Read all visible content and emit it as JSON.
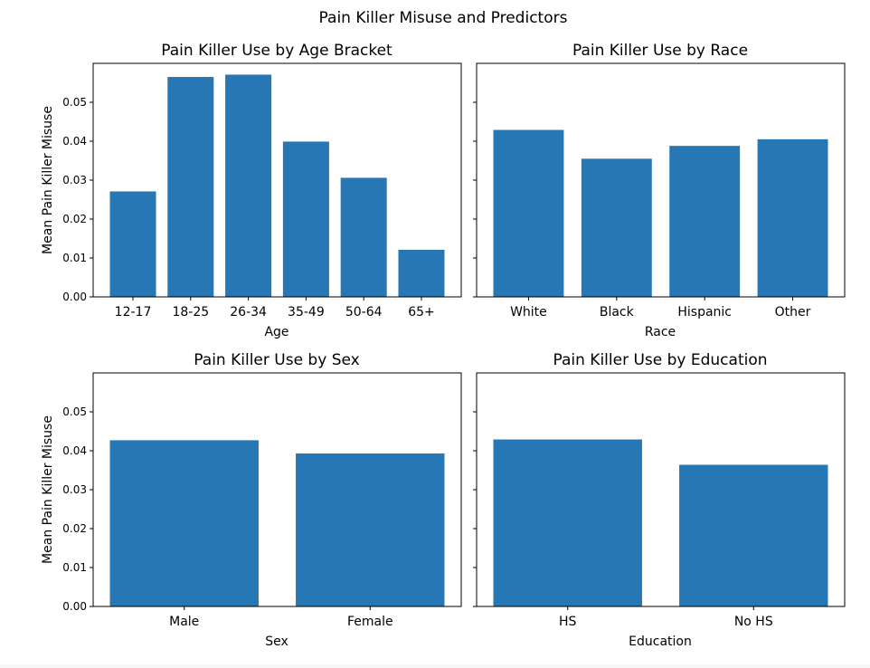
{
  "suptitle": "Pain Killer Misuse and Predictors",
  "bar_color": "#2677b4",
  "chart_data": [
    {
      "type": "bar",
      "title": "Pain Killer Use by Age Bracket",
      "xlabel": "Age",
      "ylabel": "Mean Pain Killer Misuse",
      "categories": [
        "12-17",
        "18-25",
        "26-34",
        "35-49",
        "50-64",
        "65+"
      ],
      "values": [
        0.0271,
        0.0565,
        0.0571,
        0.0399,
        0.0306,
        0.0121
      ],
      "ylim": [
        0,
        0.06
      ],
      "yticks": [
        "0.00",
        "0.01",
        "0.02",
        "0.03",
        "0.04",
        "0.05"
      ],
      "grid": false
    },
    {
      "type": "bar",
      "title": "Pain Killer Use by Race",
      "xlabel": "Race",
      "ylabel": "",
      "categories": [
        "White",
        "Black",
        "Hispanic",
        "Other"
      ],
      "values": [
        0.0429,
        0.0355,
        0.0388,
        0.0405
      ],
      "ylim": [
        0,
        0.06
      ],
      "yticks": [],
      "grid": false
    },
    {
      "type": "bar",
      "title": "Pain Killer Use by Sex",
      "xlabel": "Sex",
      "ylabel": "Mean Pain Killer Misuse",
      "categories": [
        "Male",
        "Female"
      ],
      "values": [
        0.0427,
        0.0393
      ],
      "ylim": [
        0,
        0.06
      ],
      "yticks": [
        "0.00",
        "0.01",
        "0.02",
        "0.03",
        "0.04",
        "0.05"
      ],
      "grid": false
    },
    {
      "type": "bar",
      "title": "Pain Killer Use by Education",
      "xlabel": "Education",
      "ylabel": "",
      "categories": [
        "HS",
        "No HS"
      ],
      "values": [
        0.0429,
        0.0364
      ],
      "ylim": [
        0,
        0.06
      ],
      "yticks": [],
      "grid": false
    }
  ]
}
